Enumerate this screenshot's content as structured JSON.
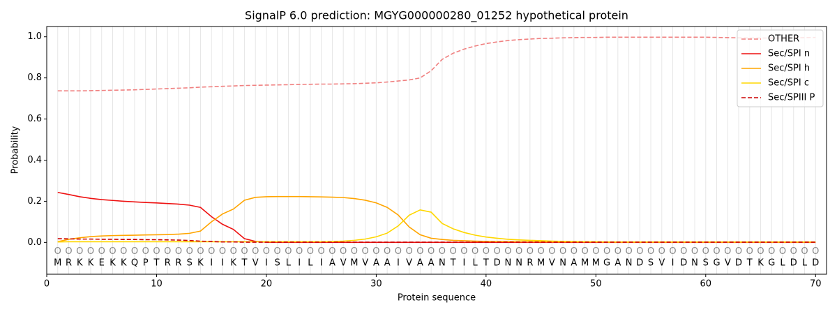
{
  "chart_data": {
    "type": "line",
    "title": "SignalP 6.0 prediction: MGYG000000280_01252 hypothetical protein",
    "xlabel": "Protein sequence",
    "ylabel": "Probability",
    "x": [
      1,
      2,
      3,
      4,
      5,
      6,
      7,
      8,
      9,
      10,
      11,
      12,
      13,
      14,
      15,
      16,
      17,
      18,
      19,
      20,
      21,
      22,
      23,
      24,
      25,
      26,
      27,
      28,
      29,
      30,
      31,
      32,
      33,
      34,
      35,
      36,
      37,
      38,
      39,
      40,
      41,
      42,
      43,
      44,
      45,
      46,
      47,
      48,
      49,
      50,
      51,
      52,
      53,
      54,
      55,
      56,
      57,
      58,
      59,
      60,
      61,
      62,
      63,
      64,
      65,
      66,
      67,
      68,
      69,
      70
    ],
    "sequence": [
      "M",
      "R",
      "K",
      "K",
      "E",
      "K",
      "K",
      "Q",
      "P",
      "T",
      "R",
      "R",
      "S",
      "K",
      "I",
      "I",
      "K",
      "T",
      "V",
      "I",
      "S",
      "L",
      "I",
      "L",
      "I",
      "A",
      "V",
      "M",
      "V",
      "A",
      "A",
      "I",
      "V",
      "A",
      "A",
      "N",
      "T",
      "I",
      "L",
      "T",
      "D",
      "N",
      "N",
      "R",
      "M",
      "V",
      "N",
      "A",
      "M",
      "M",
      "G",
      "A",
      "N",
      "D",
      "S",
      "V",
      "I",
      "D",
      "N",
      "S",
      "G",
      "V",
      "D",
      "T",
      "K",
      "G",
      "L",
      "D",
      "L",
      "D"
    ],
    "markers": [
      "O",
      "O",
      "O",
      "O",
      "O",
      "O",
      "O",
      "O",
      "O",
      "O",
      "O",
      "O",
      "O",
      "O",
      "O",
      "O",
      "O",
      "O",
      "O",
      "O",
      "O",
      "O",
      "O",
      "O",
      "O",
      "O",
      "O",
      "O",
      "O",
      "O",
      "O",
      "O",
      "O",
      "O",
      "O",
      "O",
      "O",
      "O",
      "O",
      "O",
      "O",
      "O",
      "O",
      "O",
      "O",
      "O",
      "O",
      "O",
      "O",
      "O",
      "O",
      "O",
      "O",
      "O",
      "O",
      "O",
      "O",
      "O",
      "O",
      "O",
      "O",
      "O",
      "O",
      "O",
      "O",
      "O",
      "O",
      "O",
      "O",
      "O"
    ],
    "series": [
      {
        "name": "OTHER",
        "color": "#f08080",
        "linestyle": "dashed",
        "values": [
          0.737,
          0.737,
          0.737,
          0.738,
          0.739,
          0.74,
          0.741,
          0.742,
          0.744,
          0.746,
          0.748,
          0.75,
          0.752,
          0.755,
          0.757,
          0.759,
          0.761,
          0.763,
          0.764,
          0.765,
          0.766,
          0.767,
          0.768,
          0.769,
          0.77,
          0.77,
          0.771,
          0.772,
          0.774,
          0.776,
          0.78,
          0.785,
          0.79,
          0.8,
          0.835,
          0.89,
          0.92,
          0.94,
          0.955,
          0.967,
          0.975,
          0.982,
          0.986,
          0.989,
          0.992,
          0.993,
          0.995,
          0.996,
          0.997,
          0.997,
          0.998,
          0.998,
          0.998,
          0.998,
          0.998,
          0.998,
          0.998,
          0.998,
          0.998,
          0.998,
          0.997,
          0.996,
          0.995,
          0.994,
          0.994,
          0.994,
          0.994,
          0.995,
          0.996,
          0.997
        ]
      },
      {
        "name": "Sec/SPI n",
        "color": "#ee1111",
        "linestyle": "solid",
        "values": [
          0.243,
          0.233,
          0.222,
          0.214,
          0.208,
          0.204,
          0.2,
          0.197,
          0.194,
          0.192,
          0.189,
          0.186,
          0.181,
          0.17,
          0.125,
          0.088,
          0.063,
          0.018,
          0.005,
          0.001,
          0,
          0,
          0,
          0,
          0,
          0,
          0,
          0,
          0,
          0,
          0,
          0,
          0,
          0,
          0,
          0,
          0,
          0,
          0,
          0,
          0,
          0,
          0,
          0,
          0,
          0,
          0,
          0,
          0,
          0,
          0,
          0,
          0,
          0,
          0,
          0,
          0,
          0,
          0,
          0,
          0,
          0,
          0,
          0,
          0,
          0,
          0,
          0,
          0,
          0
        ]
      },
      {
        "name": "Sec/SPI h",
        "color": "#ffa500",
        "linestyle": "solid",
        "values": [
          0.003,
          0.015,
          0.022,
          0.028,
          0.031,
          0.033,
          0.034,
          0.035,
          0.036,
          0.037,
          0.038,
          0.04,
          0.044,
          0.055,
          0.1,
          0.138,
          0.162,
          0.205,
          0.219,
          0.222,
          0.223,
          0.223,
          0.223,
          0.222,
          0.221,
          0.22,
          0.218,
          0.213,
          0.205,
          0.192,
          0.17,
          0.133,
          0.075,
          0.037,
          0.02,
          0.014,
          0.01,
          0.008,
          0.006,
          0.005,
          0.004,
          0.004,
          0.003,
          0.003,
          0.003,
          0.002,
          0.002,
          0.002,
          0.002,
          0.002,
          0.001,
          0.001,
          0.001,
          0.001,
          0.001,
          0.001,
          0.001,
          0.001,
          0.001,
          0.001,
          0.001,
          0.001,
          0.001,
          0.001,
          0.001,
          0.001,
          0.001,
          0.001,
          0.001,
          0.001
        ]
      },
      {
        "name": "Sec/SPI c",
        "color": "#ffd700",
        "linestyle": "solid",
        "values": [
          0.002,
          0.003,
          0.003,
          0.003,
          0.003,
          0.003,
          0.003,
          0.003,
          0.003,
          0.003,
          0.003,
          0.003,
          0.003,
          0.003,
          0.003,
          0.003,
          0.003,
          0.003,
          0.003,
          0.003,
          0.003,
          0.003,
          0.003,
          0.003,
          0.003,
          0.004,
          0.006,
          0.01,
          0.016,
          0.027,
          0.045,
          0.08,
          0.132,
          0.158,
          0.147,
          0.092,
          0.066,
          0.048,
          0.035,
          0.026,
          0.02,
          0.015,
          0.012,
          0.01,
          0.008,
          0.006,
          0.005,
          0.004,
          0.003,
          0.003,
          0.002,
          0.002,
          0.002,
          0.002,
          0.002,
          0.002,
          0.002,
          0.002,
          0.002,
          0.002,
          0.002,
          0.002,
          0.002,
          0.002,
          0.002,
          0.002,
          0.002,
          0.002,
          0.002,
          0.002
        ]
      },
      {
        "name": "Sec/SPIII P",
        "color": "#cc0000",
        "linestyle": "dashed",
        "values": [
          0.018,
          0.017,
          0.016,
          0.016,
          0.015,
          0.015,
          0.014,
          0.014,
          0.013,
          0.013,
          0.012,
          0.011,
          0.009,
          0.006,
          0.004,
          0.002,
          0.002,
          0.001,
          0.001,
          0.001,
          0.001,
          0.001,
          0.001,
          0.001,
          0.001,
          0.001,
          0.001,
          0.001,
          0.001,
          0.001,
          0.001,
          0.001,
          0.001,
          0.001,
          0.001,
          0.001,
          0.001,
          0.001,
          0.001,
          0.001,
          0.001,
          0.001,
          0.001,
          0.001,
          0.001,
          0.001,
          0.001,
          0.001,
          0.001,
          0.001,
          0.001,
          0.001,
          0.001,
          0.001,
          0.001,
          0.001,
          0.001,
          0.001,
          0.001,
          0.001,
          0.001,
          0.001,
          0.001,
          0.001,
          0.001,
          0.001,
          0.001,
          0.001,
          0.001,
          0.001
        ]
      }
    ],
    "xlim": [
      0,
      71
    ],
    "ylim": [
      -0.155,
      1.05
    ],
    "xticks": [
      0,
      10,
      20,
      30,
      40,
      50,
      60,
      70
    ],
    "yticks": [
      {
        "value": 0,
        "label": "0.0"
      },
      {
        "value": 0.2,
        "label": "0.2"
      },
      {
        "value": 0.4,
        "label": "0.4"
      },
      {
        "value": 0.6,
        "label": "0.6"
      },
      {
        "value": 0.8,
        "label": "0.8"
      },
      {
        "value": 1,
        "label": "1.0"
      }
    ],
    "grid": "x",
    "legend": "upper right"
  }
}
